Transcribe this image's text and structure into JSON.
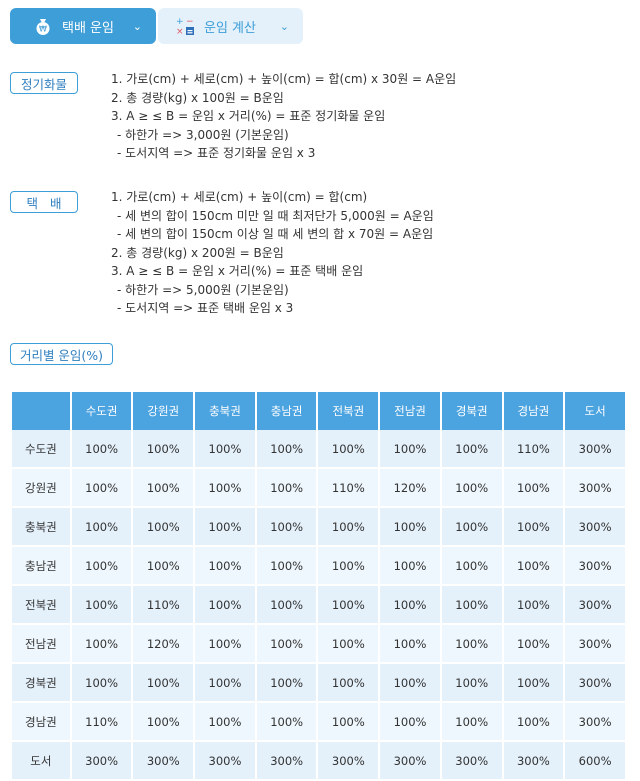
{
  "tabs": [
    {
      "label": "택배 운임",
      "icon": "money-bag-icon"
    },
    {
      "label": "운임 계산",
      "icon": "calculator-icon"
    }
  ],
  "sections": {
    "freight": {
      "label": "정기화물",
      "lines": [
        "1. 가로(cm) + 세로(cm) + 높이(cm) = 합(cm) x 30원 = A운임",
        "2. 총 경량(kg) x 100원 = B운임",
        "3. A ≥ ≤ B = 운임 x 거리(%) = 표준 정기화물 운임",
        "- 하한가 => 3,000원 (기본운임)",
        "- 도서지역 => 표준 정기화물 운임 x 3"
      ]
    },
    "parcel": {
      "label": "택   배",
      "lines": [
        "1. 가로(cm) + 세로(cm) + 높이(cm) = 합(cm)",
        "- 세 변의 합이 150cm 미만 일 때 최저단가 5,000원 = A운임",
        "- 세 변의 합이 150cm 이상 일 때 세 변의 합 x 70원 = A운임",
        "2. 총 경량(kg) x 200원 = B운임",
        "3. A ≥ ≤ B = 운임 x 거리(%) = 표준 택배 운임",
        "- 하한가 => 5,000원 (기본운임)",
        "- 도서지역 => 표준 택배 운임 x 3"
      ]
    },
    "distance": {
      "label": "거리별 운임(%)"
    }
  },
  "table": {
    "corner": "",
    "headers": [
      "수도권",
      "강원권",
      "충북권",
      "충남권",
      "전북권",
      "전남권",
      "경북권",
      "경남권",
      "도서"
    ],
    "rows": [
      {
        "label": "수도권",
        "values": [
          "100%",
          "100%",
          "100%",
          "100%",
          "100%",
          "100%",
          "100%",
          "110%",
          "300%"
        ]
      },
      {
        "label": "강원권",
        "values": [
          "100%",
          "100%",
          "100%",
          "100%",
          "110%",
          "120%",
          "100%",
          "100%",
          "300%"
        ]
      },
      {
        "label": "충북권",
        "values": [
          "100%",
          "100%",
          "100%",
          "100%",
          "100%",
          "100%",
          "100%",
          "100%",
          "300%"
        ]
      },
      {
        "label": "충남권",
        "values": [
          "100%",
          "100%",
          "100%",
          "100%",
          "100%",
          "100%",
          "100%",
          "100%",
          "300%"
        ]
      },
      {
        "label": "전북권",
        "values": [
          "100%",
          "110%",
          "100%",
          "100%",
          "100%",
          "100%",
          "100%",
          "100%",
          "300%"
        ]
      },
      {
        "label": "전남권",
        "values": [
          "100%",
          "120%",
          "100%",
          "100%",
          "100%",
          "100%",
          "100%",
          "100%",
          "300%"
        ]
      },
      {
        "label": "경북권",
        "values": [
          "100%",
          "100%",
          "100%",
          "100%",
          "100%",
          "100%",
          "100%",
          "100%",
          "300%"
        ]
      },
      {
        "label": "경남권",
        "values": [
          "110%",
          "100%",
          "100%",
          "100%",
          "100%",
          "100%",
          "100%",
          "100%",
          "300%"
        ]
      },
      {
        "label": "도서",
        "values": [
          "300%",
          "300%",
          "300%",
          "300%",
          "300%",
          "300%",
          "300%",
          "300%",
          "600%"
        ]
      }
    ]
  }
}
